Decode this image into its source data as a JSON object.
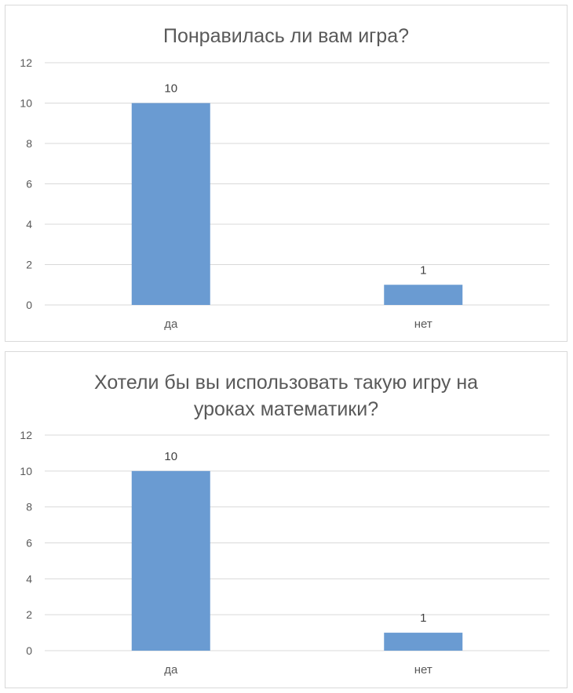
{
  "chart_data": [
    {
      "type": "bar",
      "title": "Понравилась ли вам игра?",
      "categories": [
        "да",
        "нет"
      ],
      "values": [
        10,
        1
      ],
      "data_labels": [
        "10",
        "1"
      ],
      "yticks": [
        "0",
        "2",
        "4",
        "6",
        "8",
        "10",
        "12"
      ],
      "ylim": [
        0,
        12
      ],
      "xlabel": "",
      "ylabel": "",
      "grid": true,
      "legend": "none",
      "bar_color": "#6a9bd2",
      "grid_color": "#d9d9d9"
    },
    {
      "type": "bar",
      "title": "Хотели бы вы использовать такую игру на уроках математики?",
      "categories": [
        "да",
        "нет"
      ],
      "values": [
        10,
        1
      ],
      "data_labels": [
        "10",
        "1"
      ],
      "yticks": [
        "0",
        "2",
        "4",
        "6",
        "8",
        "10",
        "12"
      ],
      "ylim": [
        0,
        12
      ],
      "xlabel": "",
      "ylabel": "",
      "grid": true,
      "legend": "none",
      "bar_color": "#6a9bd2",
      "grid_color": "#d9d9d9"
    }
  ]
}
